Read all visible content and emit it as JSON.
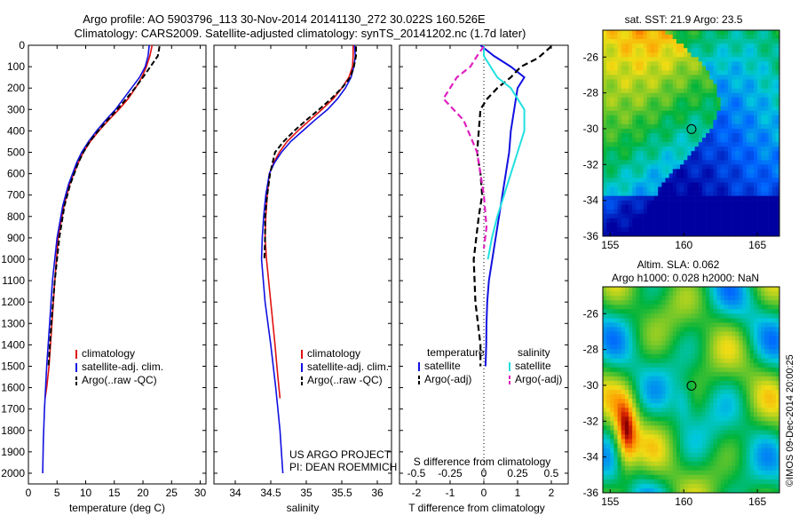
{
  "title_line1": "Argo profile: AO 5903796_113 30-Nov-2014 20141130_272 30.022S 160.526E",
  "title_line2": "Climatology: CARS2009. Satellite-adjusted climatology: synTS_20141202.nc (1.7d later)",
  "project_line1": "US ARGO PROJECT",
  "project_line2": "PI: DEAN ROEMMICH",
  "watermark": "©IMOS 09-Dec-2014 20:00:25",
  "colors": {
    "climatology": "#e01010",
    "satellite": "#1010e0",
    "argo": "#000000",
    "sal_satellite": "#20e0e0",
    "sal_argo": "#e020c0"
  },
  "chart_data": [
    {
      "type": "line",
      "id": "temperature",
      "xlabel": "temperature (deg C)",
      "ylabel": "",
      "xlim": [
        0,
        31
      ],
      "ylim": [
        2050,
        0
      ],
      "xticks": [
        0,
        5,
        10,
        15,
        20,
        25,
        30
      ],
      "yticks": [
        0,
        100,
        200,
        300,
        400,
        500,
        600,
        700,
        800,
        900,
        1000,
        1100,
        1200,
        1300,
        1400,
        1500,
        1600,
        1700,
        1800,
        1900,
        2000
      ],
      "legend": [
        "climatology",
        "satellite-adj. clim.",
        "Argo(..raw -QC)"
      ],
      "series": [
        {
          "name": "climatology",
          "style": "solid",
          "color": "#e01010",
          "x": [
            21.6,
            21.2,
            20.6,
            19.8,
            18.7,
            17.4,
            15.8,
            14.0,
            12.3,
            10.8,
            9.6,
            8.7,
            7.9,
            7.2,
            6.2,
            5.2,
            4.6,
            4.1,
            3.6,
            3.2,
            2.9
          ],
          "y": [
            0,
            50,
            100,
            150,
            200,
            250,
            300,
            350,
            400,
            450,
            500,
            550,
            600,
            650,
            750,
            900,
            1100,
            1300,
            1500,
            1600,
            1650
          ]
        },
        {
          "name": "satellite-adj. clim.",
          "style": "solid",
          "color": "#1010e0",
          "x": [
            21.1,
            20.9,
            20.4,
            19.4,
            18.0,
            16.6,
            15.2,
            13.5,
            11.9,
            10.5,
            9.3,
            8.4,
            7.7,
            7.0,
            6.0,
            5.0,
            4.2,
            3.7,
            3.2,
            2.8,
            2.6,
            2.5
          ],
          "y": [
            0,
            50,
            100,
            150,
            200,
            250,
            300,
            350,
            400,
            450,
            500,
            550,
            600,
            650,
            750,
            900,
            1100,
            1300,
            1500,
            1700,
            1850,
            2000
          ]
        },
        {
          "name": "Argo(..raw -QC)",
          "style": "dashed",
          "color": "#000000",
          "x": [
            22.9,
            22.6,
            21.3,
            20.0,
            18.6,
            17.1,
            15.5,
            13.8,
            12.2,
            10.7,
            9.6,
            8.7,
            8.0,
            7.3,
            6.3,
            5.4,
            4.6,
            4.0,
            3.5
          ],
          "y": [
            5,
            50,
            100,
            150,
            200,
            250,
            300,
            350,
            400,
            450,
            500,
            550,
            600,
            650,
            750,
            900,
            1100,
            1300,
            1500
          ]
        }
      ]
    },
    {
      "type": "line",
      "id": "salinity",
      "xlabel": "salinity",
      "ylabel": "",
      "xlim": [
        33.7,
        36.2
      ],
      "ylim": [
        2050,
        0
      ],
      "xticks": [
        34,
        34.5,
        35,
        35.5,
        36
      ],
      "legend": [
        "climatology",
        "satellite-adj. clim.",
        "Argo(..raw -QC)"
      ],
      "series": [
        {
          "name": "climatology",
          "style": "solid",
          "color": "#e01010",
          "x": [
            35.66,
            35.66,
            35.65,
            35.6,
            35.5,
            35.38,
            35.22,
            35.05,
            34.88,
            34.73,
            34.62,
            34.54,
            34.48,
            34.45,
            34.43,
            34.42,
            34.44,
            34.5,
            34.56,
            34.6,
            34.63
          ],
          "y": [
            0,
            50,
            100,
            150,
            200,
            250,
            300,
            350,
            400,
            450,
            500,
            550,
            600,
            700,
            800,
            900,
            1000,
            1200,
            1400,
            1550,
            1650
          ]
        },
        {
          "name": "satellite-adj. clim.",
          "style": "solid",
          "color": "#1010e0",
          "x": [
            35.68,
            35.69,
            35.67,
            35.63,
            35.55,
            35.44,
            35.3,
            35.12,
            34.95,
            34.78,
            34.65,
            34.55,
            34.48,
            34.43,
            34.4,
            34.38,
            34.37,
            34.42,
            34.5,
            34.57,
            34.63,
            34.67
          ],
          "y": [
            0,
            50,
            100,
            150,
            200,
            250,
            300,
            350,
            400,
            450,
            500,
            550,
            600,
            700,
            800,
            900,
            1000,
            1200,
            1400,
            1600,
            1800,
            2000
          ]
        },
        {
          "name": "Argo(..raw -QC)",
          "style": "dashed",
          "color": "#000000",
          "x": [
            35.7,
            35.7,
            35.67,
            35.62,
            35.5,
            35.35,
            35.18,
            35.0,
            34.83,
            34.68,
            34.56,
            34.49,
            34.45,
            34.42,
            34.42,
            34.41
          ],
          "y": [
            5,
            50,
            100,
            150,
            200,
            250,
            300,
            350,
            400,
            450,
            500,
            600,
            700,
            800,
            900,
            1000
          ]
        }
      ]
    },
    {
      "type": "line",
      "id": "differences",
      "xlabel": "T difference from climatology",
      "x2label": "S difference from climatology",
      "xlim": [
        -2.5,
        2.5
      ],
      "ylim": [
        2050,
        0
      ],
      "xticks": [
        -2,
        -1,
        0,
        1,
        2
      ],
      "x2ticks": [
        "-0.5",
        "-0.25",
        "0",
        "0.25",
        "0.5"
      ],
      "legend_temperature_title": "temperature",
      "legend_salinity_title": "salinity",
      "legend_items": [
        "satellite",
        "Argo(-adj)",
        "satellite",
        "Argo(-adj)"
      ],
      "series": [
        {
          "name": "satellite",
          "group": "temperature",
          "style": "solid",
          "color": "#1010e0",
          "x": [
            -0.1,
            0.3,
            0.8,
            1.2,
            1.0,
            0.9,
            0.8,
            0.75,
            0.65,
            0.55,
            0.45,
            0.35,
            0.25,
            0.15,
            0.1,
            0.08,
            0.07,
            0.05
          ],
          "y": [
            0,
            50,
            100,
            150,
            200,
            300,
            400,
            500,
            600,
            700,
            800,
            900,
            1000,
            1100,
            1200,
            1300,
            1400,
            1500
          ]
        },
        {
          "name": "Argo(-adj)",
          "group": "temperature",
          "style": "dashed",
          "color": "#000000",
          "x": [
            2.0,
            1.6,
            1.1,
            0.8,
            0.4,
            0.1,
            -0.1,
            -0.15,
            -0.2,
            -0.1,
            -0.05,
            -0.15,
            -0.3,
            -0.25,
            -0.1,
            -0.1
          ],
          "y": [
            5,
            60,
            100,
            150,
            200,
            250,
            300,
            400,
            500,
            600,
            700,
            800,
            1000,
            1200,
            1400,
            1500
          ]
        },
        {
          "name": "satellite",
          "group": "salinity",
          "style": "solid",
          "color": "#20e0e0",
          "x": [
            0.0,
            0.0,
            0.05,
            0.1,
            0.2,
            0.3,
            0.3,
            0.25,
            0.2,
            0.15,
            0.1,
            0.06,
            0.03
          ],
          "y": [
            0,
            50,
            100,
            150,
            200,
            300,
            400,
            500,
            600,
            700,
            800,
            900,
            1000
          ]
        },
        {
          "name": "Argo(-adj)",
          "group": "salinity",
          "style": "dashed",
          "color": "#e020c0",
          "x": [
            0.0,
            -0.05,
            -0.1,
            -0.2,
            -0.3,
            -0.15,
            -0.05,
            0.0,
            0.02,
            0.0
          ],
          "y": [
            5,
            50,
            100,
            150,
            250,
            350,
            500,
            700,
            850,
            950
          ]
        }
      ]
    },
    {
      "type": "heatmap",
      "id": "sst",
      "title": "sat. SST: 21.9 Argo: 23.5",
      "xlim": [
        154.5,
        166.5
      ],
      "ylim": [
        -36,
        -24.5
      ],
      "xticks": [
        155,
        160,
        165
      ],
      "yticks": [
        -26,
        -28,
        -30,
        -32,
        -34,
        -36
      ],
      "marker": {
        "lon": 160.526,
        "lat": -30.022
      }
    },
    {
      "type": "heatmap",
      "id": "sla",
      "title_line1": "Altim. SLA: 0.062",
      "title_line2": "Argo h1000: 0.028 h2000: NaN",
      "xlim": [
        154.5,
        166.5
      ],
      "ylim": [
        -36,
        -24.5
      ],
      "xticks": [
        155,
        160,
        165
      ],
      "yticks": [
        -26,
        -28,
        -30,
        -32,
        -34,
        -36
      ],
      "marker": {
        "lon": 160.526,
        "lat": -30.022
      }
    }
  ]
}
